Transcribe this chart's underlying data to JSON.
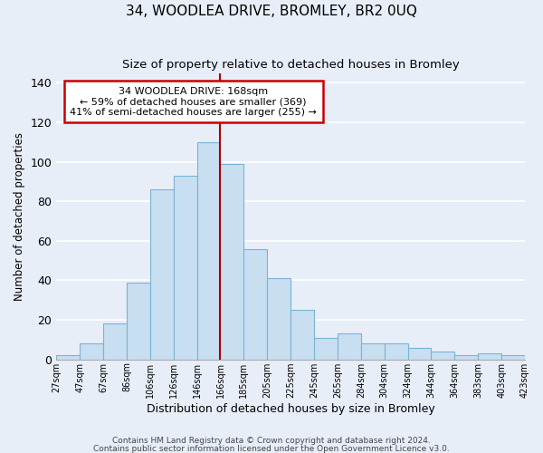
{
  "title": "34, WOODLEA DRIVE, BROMLEY, BR2 0UQ",
  "subtitle": "Size of property relative to detached houses in Bromley",
  "xlabel": "Distribution of detached houses by size in Bromley",
  "ylabel": "Number of detached properties",
  "bar_labels": [
    "27sqm",
    "47sqm",
    "67sqm",
    "86sqm",
    "106sqm",
    "126sqm",
    "146sqm",
    "166sqm",
    "185sqm",
    "205sqm",
    "225sqm",
    "245sqm",
    "265sqm",
    "284sqm",
    "304sqm",
    "324sqm",
    "344sqm",
    "364sqm",
    "383sqm",
    "403sqm",
    "423sqm"
  ],
  "bar_values": [
    2,
    8,
    18,
    39,
    86,
    93,
    110,
    99,
    56,
    41,
    25,
    11,
    13,
    8,
    8,
    6,
    4,
    2,
    3,
    2
  ],
  "bar_color": "#c8dff2",
  "bar_edge_color": "#7ab3d4",
  "ref_line_x": 7,
  "ref_line_color": "#aa0000",
  "annotation_line1": "34 WOODLEA DRIVE: 168sqm",
  "annotation_line2": "← 59% of detached houses are smaller (369)",
  "annotation_line3": "41% of semi-detached houses are larger (255) →",
  "annotation_box_color": "#ffffff",
  "annotation_box_edge": "#cc0000",
  "ylim": [
    0,
    145
  ],
  "yticks": [
    0,
    20,
    40,
    60,
    80,
    100,
    120,
    140
  ],
  "footer1": "Contains HM Land Registry data © Crown copyright and database right 2024.",
  "footer2": "Contains public sector information licensed under the Open Government Licence v3.0.",
  "bg_color": "#e8eef8",
  "plot_bg_color": "#e8eef8",
  "grid_color": "#ffffff",
  "title_fontsize": 11,
  "subtitle_fontsize": 9.5,
  "xlabel_fontsize": 9,
  "ylabel_fontsize": 8.5
}
